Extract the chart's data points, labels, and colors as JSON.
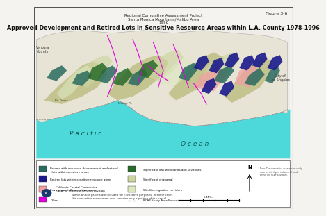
{
  "figure_label": "Figure 3-6",
  "subtitle1": "Regional Cumulative Assessment Project",
  "subtitle2": "Santa Monica Mountains/Malibu Area",
  "subtitle3": "1996",
  "title": "Approved Development and Retired Lots in Sensitive Resource Areas within L.A. County 1978-1996",
  "figure_bg": "#f5f3ef",
  "map_bg": "#f0ede8",
  "ocean_color": "#4dd9d9",
  "land_base_color": "#e8e4d5",
  "olive_color": "#b8ba7a",
  "dark_teal_color": "#2a6b5e",
  "dark_blue_color": "#1a1a8c",
  "pink_color": "#f0a0a0",
  "magenta_color": "#dd00dd",
  "dark_green_color": "#2a6b2a",
  "light_green_color": "#ccd5a0",
  "pale_green_color": "#dde8c0",
  "legend_bg": "#ffffff",
  "legend_items": [
    {
      "color": "#2a6b5e",
      "label": "Parcels with approved development and retired\n  lots within sensitive areas"
    },
    {
      "color": "#1a1a8c",
      "label": "Retired lots within sensitive resource areas"
    },
    {
      "color": "#f0a0a0",
      "label": "Environmentally sensitive areas"
    },
    {
      "color": "#dd00dd",
      "label": "Offers",
      "is_line": false
    }
  ],
  "legend_items2": [
    {
      "color": "#2a6b2a",
      "label": "Significant oak woodlands and savannas"
    },
    {
      "color": "#ccd5a0",
      "label": "Significant chaparral"
    },
    {
      "color": "#dde8c0",
      "label": "Wildlife migration corridors"
    },
    {
      "color": "#888888",
      "label": "RCAP Study Area Boundary",
      "linestyle": "dashed"
    }
  ],
  "note_text": "Within and/or parcels are included for illustrative purposes, in some cases\nthe cumulative assessment area contains only a portion of the parcel.",
  "org_name": "California Coastal Commission\nRACAP & Technical Services Division",
  "scale_label": "5 Miles",
  "pacific_text": "P a c i f i c",
  "ocean_text": "O c e a n",
  "ventura_text": "Ventura\nCounty",
  "los_angeles_text": "City of\nLos Angeles"
}
